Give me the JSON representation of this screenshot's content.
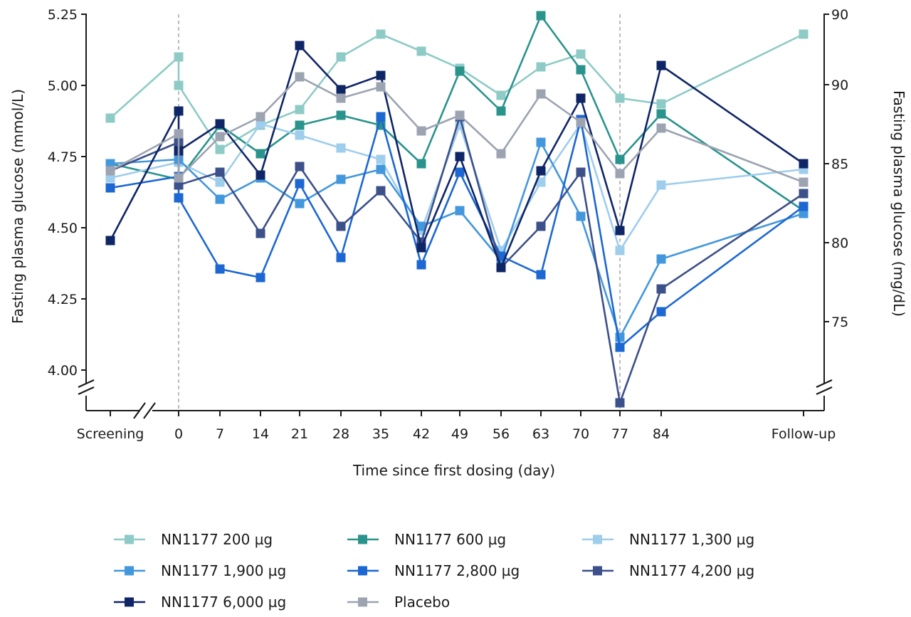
{
  "chart_data": {
    "type": "line",
    "title": "",
    "xlabel": "Time since first dosing (day)",
    "ylabel": "Fasting plasma glucose (mmol/L)",
    "y2label": "Fasting plasma glucose (mg/dL)",
    "categories": [
      "Screening",
      "0",
      "7",
      "14",
      "21",
      "28",
      "35",
      "42",
      "49",
      "56",
      "63",
      "70",
      "77",
      "84",
      "Follow-up"
    ],
    "ylim": [
      3.85,
      5.25
    ],
    "yticks": [
      "4.00",
      "4.25",
      "4.50",
      "4.75",
      "5.00",
      "5.25"
    ],
    "y2ticks": [
      "75",
      "80",
      "85",
      "90",
      "90"
    ],
    "axis_break": true,
    "grid": false,
    "reference_lines_at": [
      "0",
      "77"
    ],
    "legend_position": "bottom",
    "series": [
      {
        "name": "NN1177 200 µg",
        "color": "#8ecbc6",
        "points": [
          [
            "Screening",
            4.885
          ],
          [
            "0",
            5.1
          ],
          [
            "0",
            5.0
          ],
          [
            "7",
            4.775
          ],
          [
            "14",
            4.86
          ],
          [
            "21",
            4.915
          ],
          [
            "28",
            5.1
          ],
          [
            "35",
            5.18
          ],
          [
            "42",
            5.12
          ],
          [
            "49",
            5.06
          ],
          [
            "56",
            4.965
          ],
          [
            "63",
            5.065
          ],
          [
            "70",
            5.11
          ],
          [
            "77",
            4.955
          ],
          [
            "84",
            4.935
          ],
          [
            "Follow-up",
            5.18
          ]
        ]
      },
      {
        "name": "NN1177 600 µg",
        "color": "#2a938c",
        "points": [
          [
            "Screening",
            4.725
          ],
          [
            "0",
            4.67
          ],
          [
            "7",
            4.86
          ],
          [
            "14",
            4.76
          ],
          [
            "21",
            4.86
          ],
          [
            "28",
            4.895
          ],
          [
            "35",
            4.86
          ],
          [
            "42",
            4.725
          ],
          [
            "49",
            5.05
          ],
          [
            "56",
            4.91
          ],
          [
            "63",
            5.245
          ],
          [
            "70",
            5.055
          ],
          [
            "77",
            4.74
          ],
          [
            "84",
            4.9
          ],
          [
            "Follow-up",
            4.56
          ]
        ]
      },
      {
        "name": "NN1177 1,300 µg",
        "color": "#9fcdec",
        "points": [
          [
            "Screening",
            4.675
          ],
          [
            "0",
            4.73
          ],
          [
            "7",
            4.66
          ],
          [
            "14",
            4.865
          ],
          [
            "21",
            4.825
          ],
          [
            "28",
            4.78
          ],
          [
            "35",
            4.74
          ],
          [
            "42",
            4.49
          ],
          [
            "49",
            4.86
          ],
          [
            "56",
            4.42
          ],
          [
            "63",
            4.66
          ],
          [
            "70",
            4.865
          ],
          [
            "77",
            4.42
          ],
          [
            "84",
            4.65
          ],
          [
            "Follow-up",
            4.705
          ]
        ]
      },
      {
        "name": "NN1177 1,900 µg",
        "color": "#4397dc",
        "points": [
          [
            "Screening",
            4.725
          ],
          [
            "0",
            4.74
          ],
          [
            "7",
            4.6
          ],
          [
            "14",
            4.675
          ],
          [
            "21",
            4.585
          ],
          [
            "28",
            4.67
          ],
          [
            "35",
            4.705
          ],
          [
            "42",
            4.505
          ],
          [
            "49",
            4.56
          ],
          [
            "56",
            4.385
          ],
          [
            "63",
            4.8
          ],
          [
            "70",
            4.54
          ],
          [
            "77",
            4.115
          ],
          [
            "84",
            4.39
          ],
          [
            "Follow-up",
            4.55
          ]
        ]
      },
      {
        "name": "NN1177 2,800 µg",
        "color": "#1c67d2",
        "points": [
          [
            "Screening",
            4.64
          ],
          [
            "0",
            4.68
          ],
          [
            "0",
            4.605
          ],
          [
            "7",
            4.355
          ],
          [
            "14",
            4.325
          ],
          [
            "21",
            4.655
          ],
          [
            "28",
            4.395
          ],
          [
            "35",
            4.89
          ],
          [
            "42",
            4.37
          ],
          [
            "49",
            4.695
          ],
          [
            "56",
            4.4
          ],
          [
            "63",
            4.335
          ],
          [
            "70",
            4.88
          ],
          [
            "77",
            4.08
          ],
          [
            "84",
            4.205
          ],
          [
            "Follow-up",
            4.575
          ]
        ]
      },
      {
        "name": "NN1177 4,200 µg",
        "color": "#3c5089",
        "points": [
          [
            "Screening",
            4.7
          ],
          [
            "0",
            4.8
          ],
          [
            "0",
            4.65
          ],
          [
            "7",
            4.695
          ],
          [
            "14",
            4.48
          ],
          [
            "21",
            4.715
          ],
          [
            "28",
            4.505
          ],
          [
            "35",
            4.63
          ],
          [
            "42",
            4.45
          ],
          [
            "49",
            4.89
          ],
          [
            "56",
            4.36
          ],
          [
            "63",
            4.505
          ],
          [
            "70",
            4.695
          ],
          [
            "77",
            3.885
          ],
          [
            "84",
            4.285
          ],
          [
            "Follow-up",
            4.62
          ]
        ]
      },
      {
        "name": "NN1177 6,000 µg",
        "color": "#0e2566",
        "points": [
          [
            "Screening",
            4.455
          ],
          [
            "0",
            4.91
          ],
          [
            "0",
            4.77
          ],
          [
            "7",
            4.865
          ],
          [
            "14",
            4.685
          ],
          [
            "21",
            5.14
          ],
          [
            "28",
            4.985
          ],
          [
            "35",
            5.035
          ],
          [
            "42",
            4.43
          ],
          [
            "49",
            4.75
          ],
          [
            "56",
            4.36
          ],
          [
            "63",
            4.7
          ],
          [
            "70",
            4.955
          ],
          [
            "77",
            4.49
          ],
          [
            "84",
            5.07
          ],
          [
            "Follow-up",
            4.725
          ]
        ]
      },
      {
        "name": "Placebo",
        "color": "#9ca3b1",
        "points": [
          [
            "Screening",
            4.7
          ],
          [
            "0",
            4.83
          ],
          [
            "0",
            4.675
          ],
          [
            "7",
            4.82
          ],
          [
            "14",
            4.89
          ],
          [
            "21",
            5.03
          ],
          [
            "28",
            4.955
          ],
          [
            "35",
            4.995
          ],
          [
            "42",
            4.84
          ],
          [
            "49",
            4.895
          ],
          [
            "56",
            4.76
          ],
          [
            "63",
            4.97
          ],
          [
            "70",
            4.87
          ],
          [
            "77",
            4.69
          ],
          [
            "84",
            4.85
          ],
          [
            "Follow-up",
            4.66
          ]
        ]
      }
    ]
  }
}
